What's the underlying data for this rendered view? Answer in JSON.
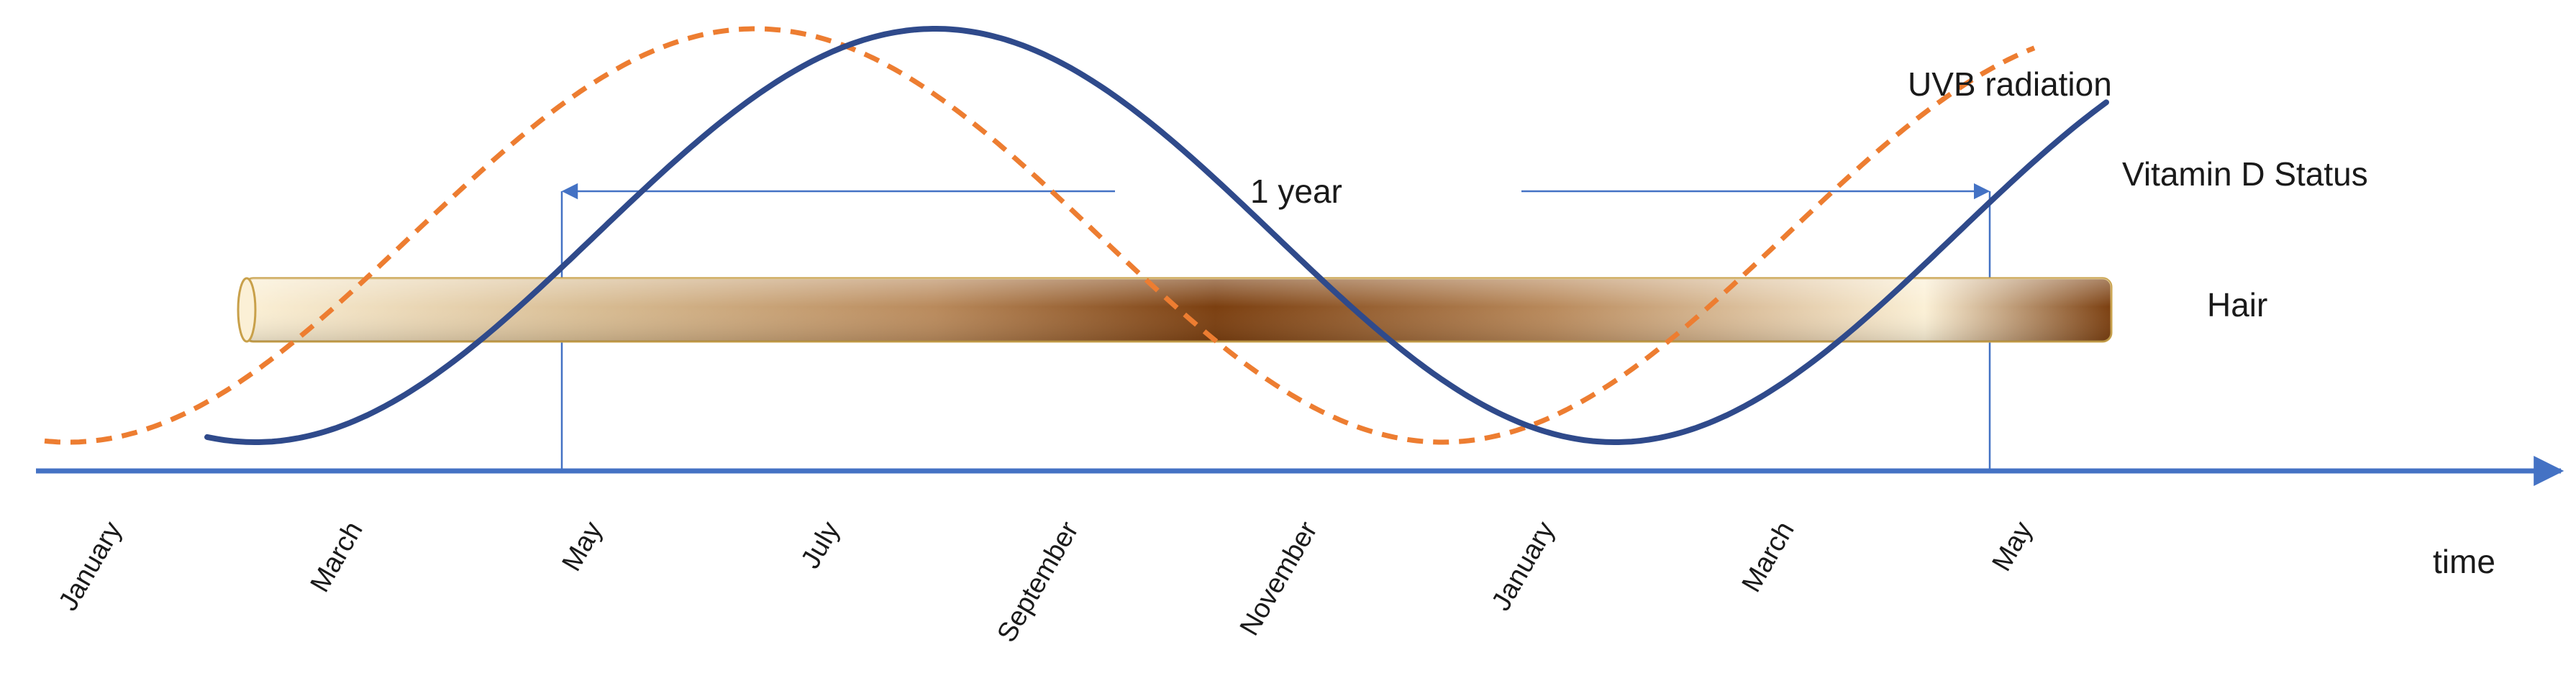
{
  "diagram": {
    "series": {
      "uvb": {
        "label": "UVB radiation",
        "color": "#ED7D31"
      },
      "vitd": {
        "label": "Vitamin D Status",
        "color": "#2F4A8B"
      }
    },
    "hair": {
      "label": "Hair",
      "light_color": "#FBF0D6",
      "dark_color": "#7B3F10",
      "outline_color": "#C8A04A"
    },
    "span": {
      "label": "1 year"
    },
    "axis": {
      "label": "time",
      "color": "#4472C4"
    },
    "months": [
      "January",
      "March",
      "May",
      "July",
      "September",
      "November",
      "January",
      "March",
      "May"
    ]
  }
}
